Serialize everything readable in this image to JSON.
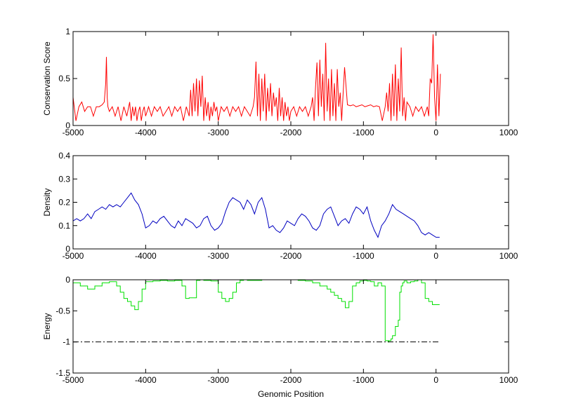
{
  "figure": {
    "background": "#ffffff"
  },
  "chart_data": [
    {
      "type": "line",
      "name_key": "conservation",
      "ylabel": "Conservation Score",
      "xlabel": "",
      "xlim": [
        -5000,
        1000
      ],
      "ylim": [
        0,
        1
      ],
      "xticks": [
        -5000,
        -4000,
        -3000,
        -2000,
        -1000,
        0,
        1000
      ],
      "yticks": [
        0,
        0.5,
        1
      ],
      "ytick_labels": [
        "0",
        "0.5",
        "1"
      ],
      "color": "#ff0000",
      "step": false,
      "x": [
        -5000,
        -4960,
        -4920,
        -4880,
        -4840,
        -4800,
        -4760,
        -4720,
        -4680,
        -4640,
        -4600,
        -4570,
        -4550,
        -4540,
        -4530,
        -4520,
        -4500,
        -4460,
        -4420,
        -4380,
        -4340,
        -4300,
        -4260,
        -4220,
        -4200,
        -4180,
        -4160,
        -4140,
        -4120,
        -4100,
        -4080,
        -4060,
        -4040,
        -4020,
        -4000,
        -3960,
        -3920,
        -3880,
        -3840,
        -3800,
        -3760,
        -3720,
        -3680,
        -3640,
        -3600,
        -3560,
        -3520,
        -3480,
        -3440,
        -3400,
        -3380,
        -3360,
        -3340,
        -3320,
        -3300,
        -3280,
        -3260,
        -3240,
        -3220,
        -3200,
        -3180,
        -3160,
        -3140,
        -3120,
        -3100,
        -3080,
        -3060,
        -3040,
        -3020,
        -3000,
        -2960,
        -2920,
        -2880,
        -2840,
        -2800,
        -2760,
        -2720,
        -2680,
        -2640,
        -2600,
        -2560,
        -2520,
        -2500,
        -2480,
        -2460,
        -2440,
        -2420,
        -2400,
        -2380,
        -2360,
        -2340,
        -2320,
        -2300,
        -2280,
        -2260,
        -2240,
        -2220,
        -2200,
        -2180,
        -2160,
        -2140,
        -2120,
        -2100,
        -2080,
        -2060,
        -2040,
        -2020,
        -2000,
        -1960,
        -1920,
        -1880,
        -1840,
        -1800,
        -1760,
        -1720,
        -1700,
        -1680,
        -1660,
        -1640,
        -1620,
        -1600,
        -1580,
        -1560,
        -1540,
        -1520,
        -1500,
        -1480,
        -1460,
        -1440,
        -1420,
        -1400,
        -1380,
        -1360,
        -1340,
        -1320,
        -1300,
        -1260,
        -1220,
        -1180,
        -1140,
        -1100,
        -1060,
        -1020,
        -980,
        -940,
        -900,
        -860,
        -820,
        -780,
        -740,
        -700,
        -680,
        -660,
        -640,
        -620,
        -600,
        -580,
        -560,
        -540,
        -520,
        -500,
        -480,
        -460,
        -440,
        -420,
        -400,
        -360,
        -320,
        -280,
        -240,
        -200,
        -160,
        -120,
        -100,
        -80,
        -60,
        -40,
        -20,
        0,
        20,
        40,
        60
      ],
      "y": [
        0.3,
        0.05,
        0.2,
        0.25,
        0.15,
        0.2,
        0.2,
        0.1,
        0.2,
        0.2,
        0.22,
        0.25,
        0.45,
        0.73,
        0.3,
        0.2,
        0.15,
        0.2,
        0.1,
        0.2,
        0.05,
        0.2,
        0.1,
        0.25,
        0.05,
        0.2,
        0.1,
        0.2,
        0.05,
        0.15,
        0.2,
        0.05,
        0.15,
        0.2,
        0.1,
        0.2,
        0.1,
        0.2,
        0.15,
        0.2,
        0.1,
        0.15,
        0.2,
        0.1,
        0.2,
        0.15,
        0.2,
        0.05,
        0.2,
        0.1,
        0.38,
        0.1,
        0.45,
        0.15,
        0.5,
        0.1,
        0.48,
        0.2,
        0.53,
        0.05,
        0.3,
        0.1,
        0.25,
        0.05,
        0.2,
        0.1,
        0.25,
        0.15,
        0.2,
        0.05,
        0.2,
        0.15,
        0.2,
        0.1,
        0.2,
        0.15,
        0.2,
        0.1,
        0.2,
        0.15,
        0.1,
        0.2,
        0.3,
        0.68,
        0.1,
        0.55,
        0.05,
        0.5,
        0.15,
        0.55,
        0.05,
        0.4,
        0.15,
        0.45,
        0.1,
        0.35,
        0.2,
        0.3,
        0.05,
        0.4,
        0.1,
        0.3,
        0.05,
        0.25,
        0.1,
        0.2,
        0.05,
        0.15,
        0.2,
        0.1,
        0.2,
        0.15,
        0.2,
        0.1,
        0.2,
        0.3,
        0.05,
        0.4,
        0.67,
        0.1,
        0.7,
        0.2,
        0.55,
        0.05,
        0.88,
        0.15,
        0.5,
        0.05,
        0.6,
        0.1,
        0.45,
        0.05,
        0.6,
        0.2,
        0.35,
        0.05,
        0.62,
        0.22,
        0.21,
        0.22,
        0.2,
        0.21,
        0.22,
        0.2,
        0.21,
        0.22,
        0.2,
        0.21,
        0.2,
        0.05,
        0.2,
        0.35,
        0.15,
        0.45,
        0.05,
        0.55,
        0.1,
        0.65,
        0.05,
        0.5,
        0.15,
        0.83,
        0.1,
        0.3,
        0.05,
        0.25,
        0.2,
        0.1,
        0.2,
        0.15,
        0.2,
        0.1,
        0.2,
        0.1,
        0.5,
        0.45,
        0.97,
        0.3,
        0.05,
        0.65,
        0.1,
        0.55
      ]
    },
    {
      "type": "line",
      "name_key": "density",
      "ylabel": "Density",
      "xlabel": "",
      "xlim": [
        -5000,
        1000
      ],
      "ylim": [
        0,
        0.4
      ],
      "xticks": [
        -5000,
        -4000,
        -3000,
        -2000,
        -1000,
        0,
        1000
      ],
      "yticks": [
        0,
        0.1,
        0.2,
        0.3,
        0.4
      ],
      "ytick_labels": [
        "0",
        "0.1",
        "0.2",
        "0.3",
        "0.4"
      ],
      "color": "#0000c0",
      "step": false,
      "x": [
        -5000,
        -4950,
        -4900,
        -4850,
        -4800,
        -4750,
        -4700,
        -4650,
        -4600,
        -4550,
        -4500,
        -4450,
        -4400,
        -4350,
        -4300,
        -4250,
        -4200,
        -4150,
        -4100,
        -4050,
        -4000,
        -3950,
        -3900,
        -3850,
        -3800,
        -3750,
        -3700,
        -3650,
        -3600,
        -3550,
        -3500,
        -3450,
        -3400,
        -3350,
        -3300,
        -3250,
        -3200,
        -3150,
        -3100,
        -3050,
        -3000,
        -2950,
        -2900,
        -2850,
        -2800,
        -2750,
        -2700,
        -2650,
        -2600,
        -2550,
        -2500,
        -2450,
        -2400,
        -2350,
        -2300,
        -2250,
        -2200,
        -2150,
        -2100,
        -2050,
        -2000,
        -1950,
        -1900,
        -1850,
        -1800,
        -1750,
        -1700,
        -1650,
        -1600,
        -1550,
        -1500,
        -1450,
        -1400,
        -1350,
        -1300,
        -1250,
        -1200,
        -1150,
        -1100,
        -1050,
        -1000,
        -950,
        -900,
        -850,
        -800,
        -750,
        -700,
        -650,
        -600,
        -550,
        -500,
        -450,
        -400,
        -350,
        -300,
        -250,
        -200,
        -150,
        -100,
        -50,
        0,
        50
      ],
      "y": [
        0.12,
        0.13,
        0.12,
        0.13,
        0.15,
        0.13,
        0.16,
        0.17,
        0.18,
        0.17,
        0.19,
        0.18,
        0.19,
        0.18,
        0.2,
        0.22,
        0.24,
        0.21,
        0.19,
        0.15,
        0.09,
        0.1,
        0.12,
        0.11,
        0.13,
        0.14,
        0.12,
        0.1,
        0.09,
        0.12,
        0.1,
        0.13,
        0.12,
        0.11,
        0.09,
        0.1,
        0.13,
        0.14,
        0.1,
        0.08,
        0.09,
        0.11,
        0.16,
        0.2,
        0.22,
        0.21,
        0.2,
        0.17,
        0.21,
        0.19,
        0.15,
        0.2,
        0.22,
        0.17,
        0.09,
        0.1,
        0.08,
        0.07,
        0.09,
        0.12,
        0.11,
        0.1,
        0.13,
        0.15,
        0.14,
        0.12,
        0.09,
        0.08,
        0.1,
        0.15,
        0.17,
        0.18,
        0.14,
        0.1,
        0.12,
        0.13,
        0.11,
        0.15,
        0.18,
        0.17,
        0.15,
        0.18,
        0.12,
        0.08,
        0.05,
        0.1,
        0.12,
        0.15,
        0.19,
        0.17,
        0.16,
        0.15,
        0.14,
        0.13,
        0.12,
        0.1,
        0.07,
        0.06,
        0.07,
        0.06,
        0.05,
        0.05
      ]
    },
    {
      "type": "line",
      "name_key": "energy",
      "ylabel": "Energy",
      "xlabel": "Genomic Position",
      "xlim": [
        -5000,
        1000
      ],
      "ylim": [
        -1.5,
        0
      ],
      "xticks": [
        -5000,
        -4000,
        -3000,
        -2000,
        -1000,
        0,
        1000
      ],
      "yticks": [
        -1.5,
        -1,
        -0.5,
        0
      ],
      "ytick_labels": [
        "-1.5",
        "-1",
        "-0.5",
        "0"
      ],
      "color": "#00e000",
      "step": true,
      "x": [
        -5000,
        -4900,
        -4800,
        -4700,
        -4600,
        -4500,
        -4400,
        -4350,
        -4300,
        -4250,
        -4200,
        -4150,
        -4100,
        -4050,
        -4000,
        -3900,
        -3800,
        -3700,
        -3600,
        -3500,
        -3450,
        -3400,
        -3300,
        -3250,
        -3200,
        -3100,
        -3000,
        -2950,
        -2900,
        -2850,
        -2800,
        -2750,
        -2700,
        -2650,
        -2600,
        -2500,
        -2400,
        -2300,
        -2200,
        -2100,
        -2000,
        -1900,
        -1800,
        -1700,
        -1600,
        -1500,
        -1450,
        -1400,
        -1350,
        -1300,
        -1250,
        -1200,
        -1150,
        -1100,
        -1050,
        -1000,
        -950,
        -900,
        -850,
        -800,
        -750,
        -700,
        -660,
        -650,
        -620,
        -600,
        -560,
        -520,
        -500,
        -480,
        -460,
        -440,
        -400,
        -350,
        -300,
        -250,
        -200,
        -150,
        -100,
        -50,
        0,
        50
      ],
      "y": [
        -0.05,
        -0.1,
        -0.15,
        -0.1,
        -0.05,
        -0.03,
        -0.1,
        -0.2,
        -0.3,
        -0.35,
        -0.42,
        -0.48,
        -0.35,
        -0.15,
        -0.03,
        -0.02,
        -0.01,
        -0.02,
        -0.01,
        -0.1,
        -0.3,
        -0.29,
        -0.01,
        0,
        -0.01,
        -0.02,
        -0.2,
        -0.3,
        -0.35,
        -0.3,
        -0.2,
        -0.05,
        -0.01,
        0,
        -0.01,
        -0.01,
        0,
        0,
        0,
        0,
        0,
        -0.01,
        -0.02,
        -0.05,
        -0.1,
        -0.15,
        -0.2,
        -0.25,
        -0.3,
        -0.35,
        -0.45,
        -0.35,
        -0.1,
        -0.05,
        -0.02,
        -0.01,
        -0.02,
        -0.03,
        -0.1,
        -0.05,
        -0.1,
        -0.98,
        -1,
        -0.98,
        -0.95,
        -0.9,
        -0.75,
        -0.65,
        -0.2,
        -0.1,
        -0.05,
        -0.02,
        -0.05,
        -0.03,
        -0.02,
        0,
        -0.05,
        -0.3,
        -0.35,
        -0.4,
        -0.4,
        -0.4
      ],
      "reference_line": {
        "value": -1,
        "from": -5000,
        "to": 50,
        "style": "dash-dot",
        "color": "#000000"
      }
    }
  ]
}
